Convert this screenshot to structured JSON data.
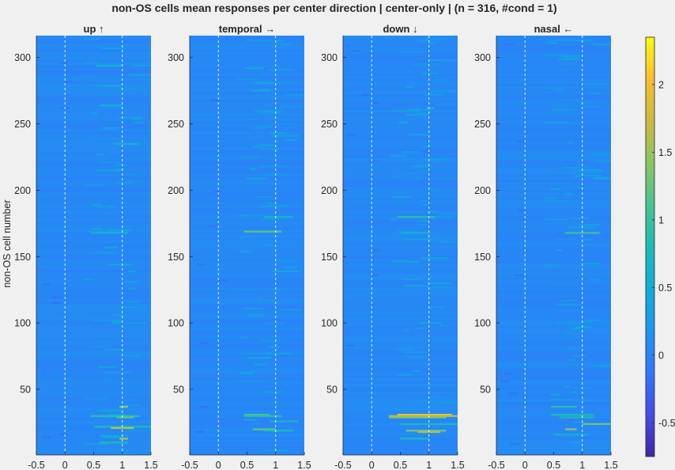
{
  "figure": {
    "title": "non-OS cells mean responses per center direction | center-only | (n = 316, #cond = 1)"
  },
  "chart_data": {
    "type": "heatmap",
    "title": "non-OS cells mean responses per center direction | center-only | (n = 316, #cond = 1)",
    "ylabel": "non-OS cell number",
    "xlim": [
      -0.5,
      1.5
    ],
    "ylim": [
      1,
      316
    ],
    "xticks": [
      -0.5,
      0,
      0.5,
      1,
      1.5
    ],
    "yticks": [
      50,
      100,
      150,
      200,
      250,
      300
    ],
    "reference_lines_x": [
      0,
      1
    ],
    "colorbar": {
      "clim": [
        -0.75,
        2.35
      ],
      "ticks": [
        -0.5,
        0,
        0.5,
        1,
        1.5,
        2
      ],
      "colormap": "parula"
    },
    "panels": [
      {
        "title": "up ↑",
        "hot_rows": [
          {
            "row": 37,
            "x0": 0.95,
            "x1": 1.1,
            "value": 1.4
          },
          {
            "row": 30,
            "x0": 0.45,
            "x1": 1.3,
            "value": 0.9
          },
          {
            "row": 29,
            "x0": 0.9,
            "x1": 1.2,
            "value": 1.2
          },
          {
            "row": 22,
            "x0": 0.5,
            "x1": 1.5,
            "value": 0.8
          },
          {
            "row": 21,
            "x0": 0.8,
            "x1": 1.2,
            "value": 1.6
          },
          {
            "row": 13,
            "x0": 0.95,
            "x1": 1.1,
            "value": 1.5
          },
          {
            "row": 10,
            "x0": 0.6,
            "x1": 1.1,
            "value": 0.8
          },
          {
            "row": 168,
            "x0": 0.45,
            "x1": 1.1,
            "value": 0.6
          },
          {
            "row": 235,
            "x0": 0.85,
            "x1": 1.3,
            "value": 0.55
          },
          {
            "row": 264,
            "x0": 0.6,
            "x1": 1.0,
            "value": 0.6
          },
          {
            "row": 294,
            "x0": 0.55,
            "x1": 1.0,
            "value": 0.6
          }
        ]
      },
      {
        "title": "temporal →",
        "hot_rows": [
          {
            "row": 31,
            "x0": 0.45,
            "x1": 0.9,
            "value": 1.1
          },
          {
            "row": 30,
            "x0": 0.45,
            "x1": 1.1,
            "value": 0.9
          },
          {
            "row": 26,
            "x0": 0.9,
            "x1": 1.4,
            "value": 0.7
          },
          {
            "row": 20,
            "x0": 0.6,
            "x1": 1.0,
            "value": 1.2
          },
          {
            "row": 19,
            "x0": 0.8,
            "x1": 1.3,
            "value": 0.8
          },
          {
            "row": 169,
            "x0": 0.45,
            "x1": 1.1,
            "value": 1.2
          },
          {
            "row": 180,
            "x0": 0.8,
            "x1": 1.3,
            "value": 0.7
          },
          {
            "row": 243,
            "x0": 0.9,
            "x1": 1.2,
            "value": 0.4
          }
        ]
      },
      {
        "title": "down ↓",
        "hot_rows": [
          {
            "row": 31,
            "x0": 0.45,
            "x1": 1.4,
            "value": 2.0
          },
          {
            "row": 30,
            "x0": 0.3,
            "x1": 1.5,
            "value": 1.6
          },
          {
            "row": 29,
            "x0": 0.3,
            "x1": 1.3,
            "value": 1.4
          },
          {
            "row": 24,
            "x0": 0.5,
            "x1": 1.5,
            "value": 0.8
          },
          {
            "row": 19,
            "x0": 0.6,
            "x1": 1.3,
            "value": 1.3
          },
          {
            "row": 18,
            "x0": 0.8,
            "x1": 1.2,
            "value": 1.6
          },
          {
            "row": 13,
            "x0": 0.5,
            "x1": 1.0,
            "value": 0.8
          },
          {
            "row": 180,
            "x0": 0.45,
            "x1": 1.1,
            "value": 0.9
          },
          {
            "row": 168,
            "x0": 0.5,
            "x1": 1.0,
            "value": 0.6
          },
          {
            "row": 262,
            "x0": 0.95,
            "x1": 1.1,
            "value": 0.6
          }
        ]
      },
      {
        "title": "nasal ←",
        "hot_rows": [
          {
            "row": 37,
            "x0": 0.45,
            "x1": 0.9,
            "value": 0.9
          },
          {
            "row": 31,
            "x0": 0.45,
            "x1": 1.2,
            "value": 0.8
          },
          {
            "row": 29,
            "x0": 0.6,
            "x1": 1.2,
            "value": 0.8
          },
          {
            "row": 24,
            "x0": 1.0,
            "x1": 1.5,
            "value": 1.3
          },
          {
            "row": 20,
            "x0": 0.7,
            "x1": 0.9,
            "value": 1.4
          },
          {
            "row": 16,
            "x0": 0.5,
            "x1": 1.1,
            "value": 0.6
          },
          {
            "row": 168,
            "x0": 0.7,
            "x1": 1.3,
            "value": 1.0
          },
          {
            "row": 209,
            "x0": 1.2,
            "x1": 1.5,
            "value": 0.5
          }
        ]
      }
    ]
  }
}
